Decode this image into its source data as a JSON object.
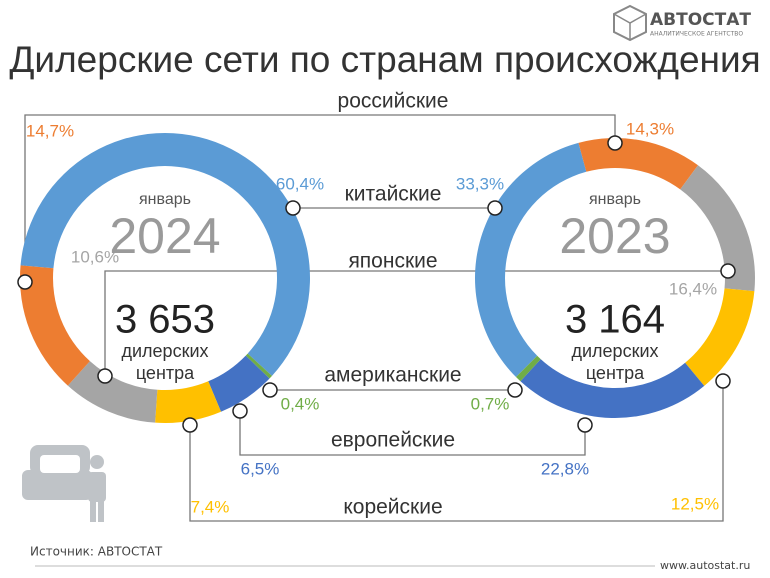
{
  "header": {
    "logo": "АВТОСТАТ",
    "logo_subtitle": "АНАЛИТИЧЕСКОЕ АГЕНТСТВО",
    "title": "Дилерские сети по странам происхождения"
  },
  "categories": [
    "российские",
    "китайские",
    "японские",
    "американские",
    "европейские",
    "корейские"
  ],
  "colors": [
    "#ed7d31",
    "#5b9bd5",
    "#a5a5a5",
    "#70ad47",
    "#4472c4",
    "#ffc000"
  ],
  "chart_data": [
    {
      "type": "pie",
      "subtitle": "январь",
      "title": "2024",
      "total": "3 653",
      "total_label": [
        "дилерских",
        "центра"
      ],
      "values": [
        14.7,
        60.4,
        10.6,
        0.4,
        6.5,
        7.4
      ],
      "value_labels": [
        "14,7%",
        "60,4%",
        "10,6%",
        "0,4%",
        "6,5%",
        "7,4%"
      ]
    },
    {
      "type": "pie",
      "subtitle": "январь",
      "title": "2023",
      "total": "3 164",
      "total_label": [
        "дилерских",
        "центра"
      ],
      "values": [
        14.3,
        33.3,
        16.4,
        0.7,
        22.8,
        12.5
      ],
      "value_labels": [
        "14,3%",
        "33,3%",
        "16,4%",
        "0,7%",
        "22,8%",
        "12,5%"
      ]
    }
  ],
  "footer": {
    "source": "Источник: АВТОСТАТ",
    "url": "www.autostat.ru"
  }
}
